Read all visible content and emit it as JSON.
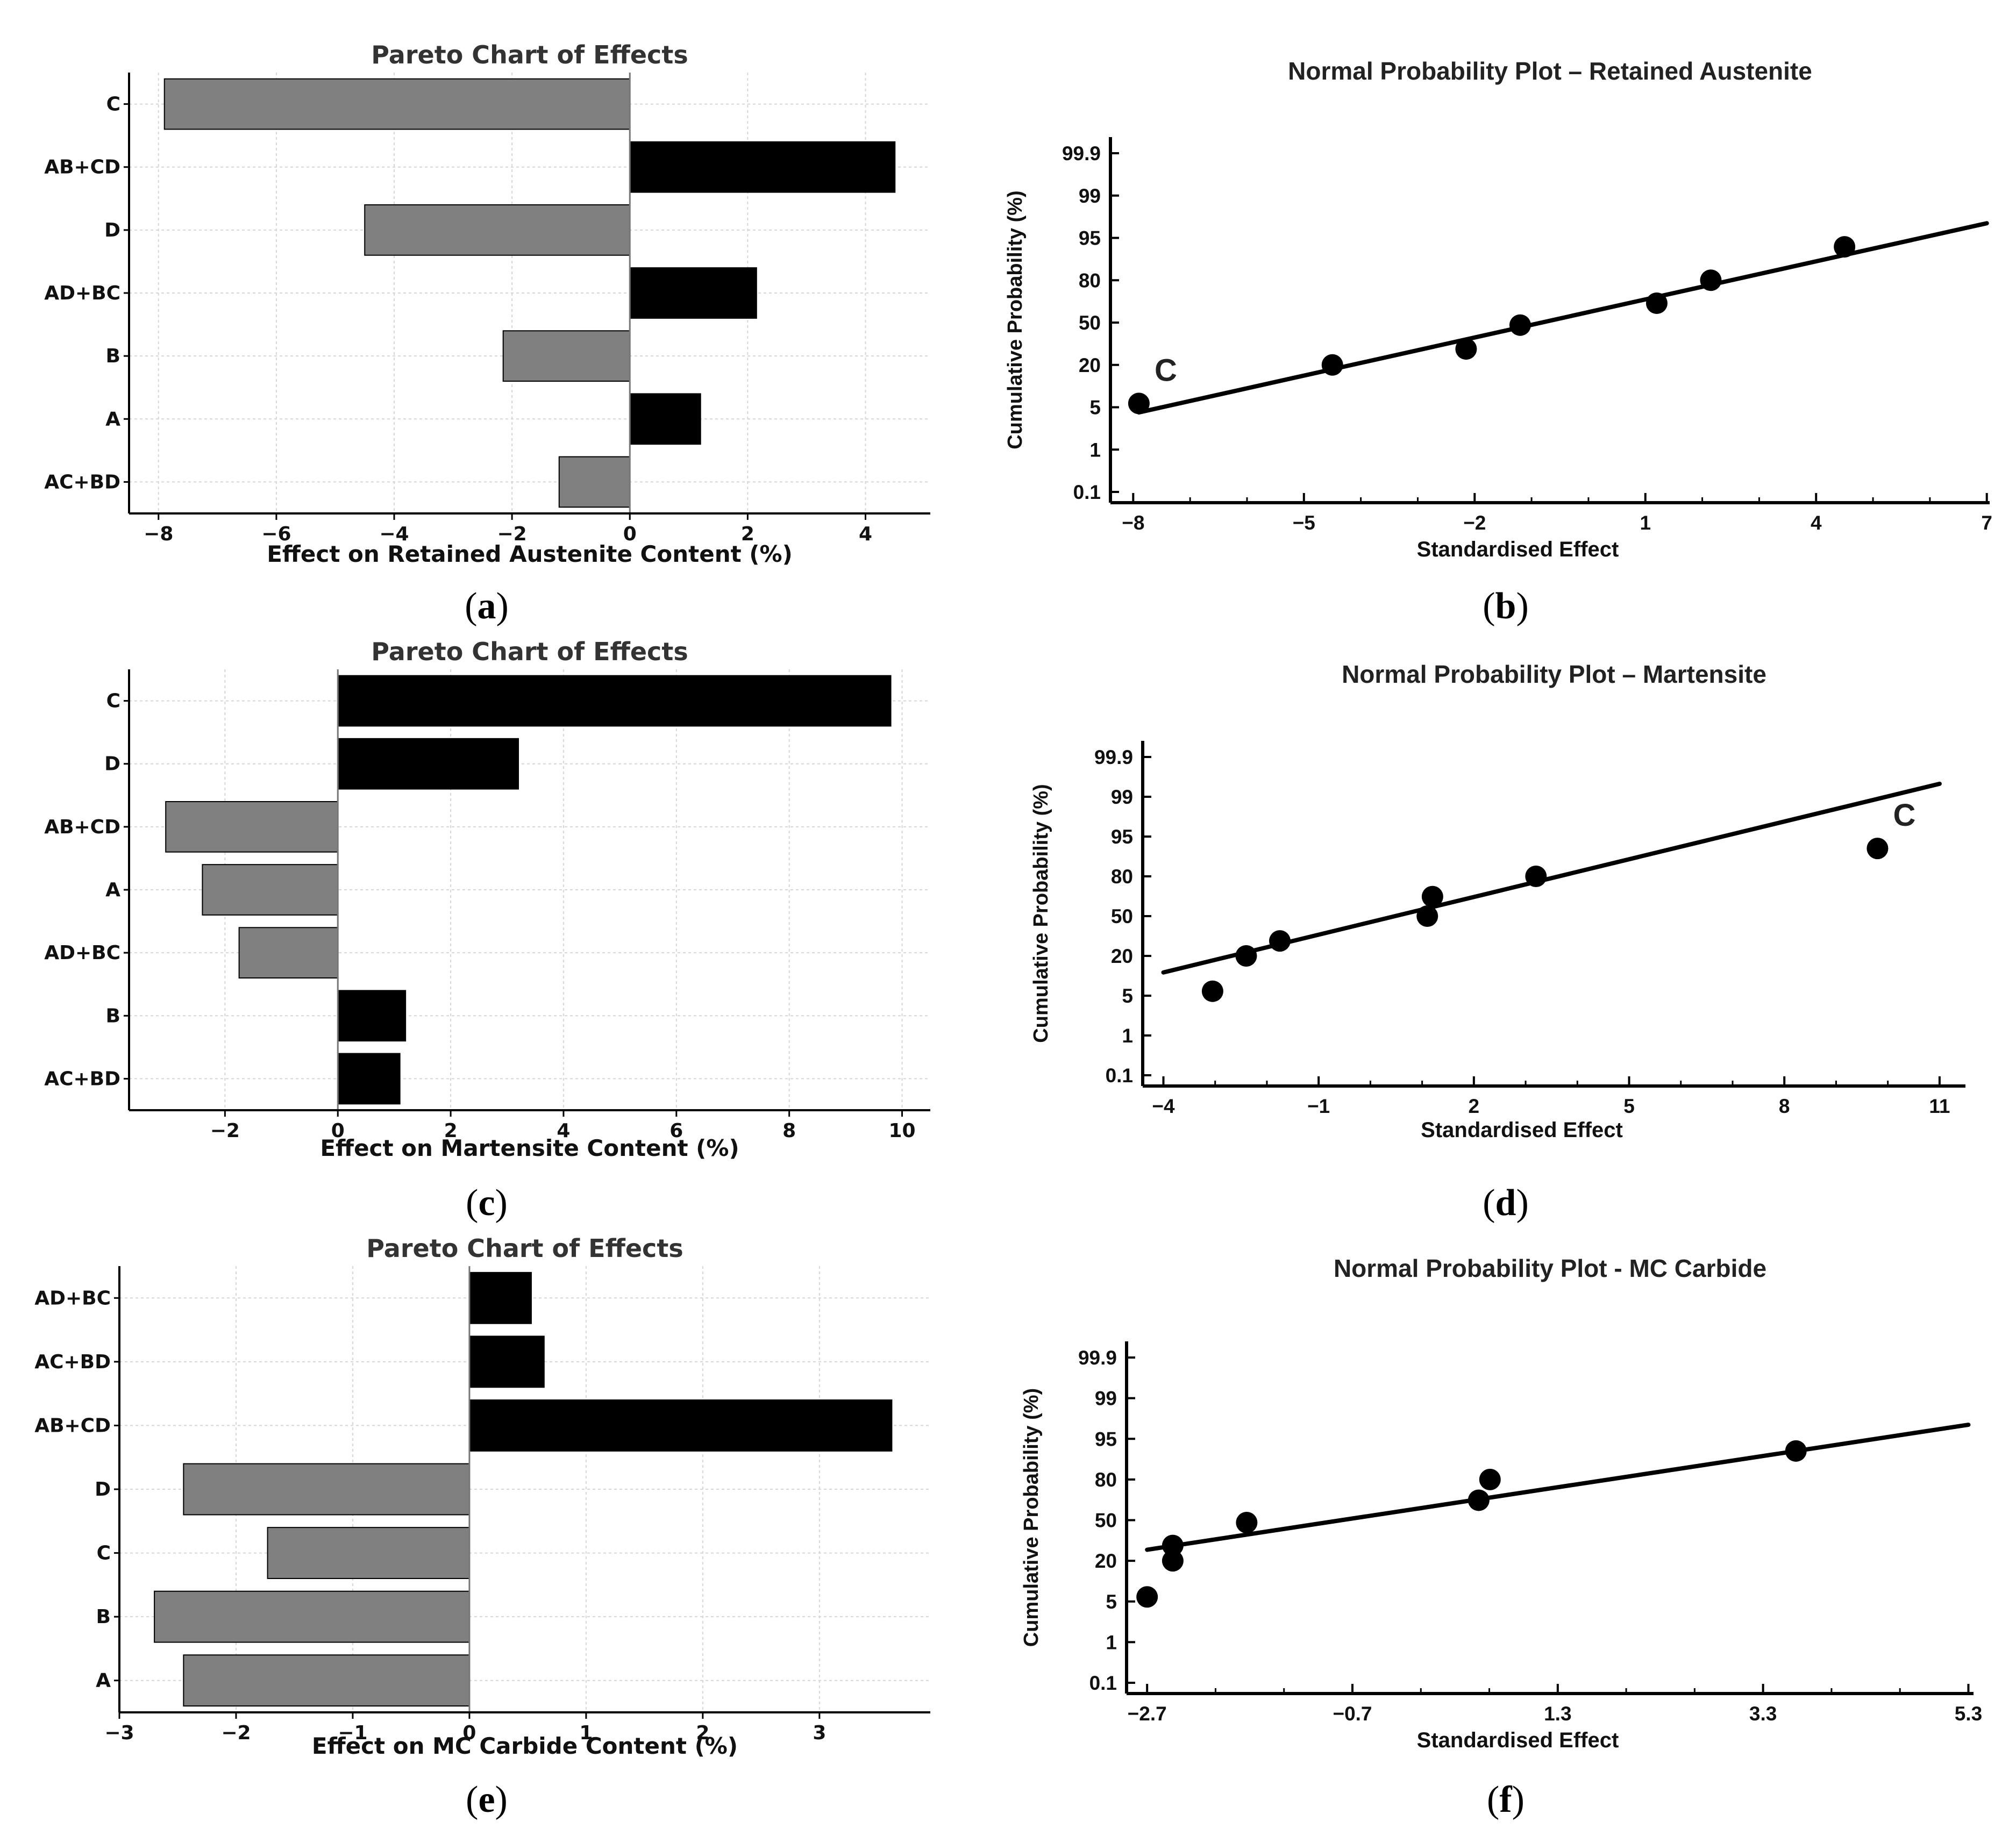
{
  "chart_data": [
    {
      "id": "a",
      "type": "bar",
      "orientation": "horizontal",
      "title": "Pareto Chart of Effects",
      "xlabel": "Effect on Retained Austenite Content (%)",
      "ylabel": "",
      "categories": [
        "C",
        "AB+CD",
        "D",
        "AD+BC",
        "B",
        "A",
        "AC+BD"
      ],
      "values": [
        -7.9,
        4.5,
        -4.5,
        2.15,
        -2.15,
        1.2,
        -1.2
      ],
      "xlim": [
        -8.5,
        5.1
      ],
      "xticks": [
        -8,
        -6,
        -4,
        -2,
        0,
        2,
        4
      ],
      "xtick_labels": [
        "−8",
        "−6",
        "−4",
        "−2",
        "0",
        "2",
        "4"
      ],
      "grid": true,
      "colors": {
        "positive": "#000000",
        "negative": "#808080"
      },
      "caption": {
        "pre": "(",
        "letter": "a",
        "post": ")"
      }
    },
    {
      "id": "b",
      "type": "scatter",
      "title": "Normal Probability Plot – Retained Austenite",
      "xlabel": "Standardised Effect",
      "ylabel": "Cumulative Probability (%)",
      "xlim": [
        -8.4,
        7.05
      ],
      "xticks": [
        -8,
        -5,
        -2,
        1,
        4,
        7
      ],
      "xtick_labels": [
        "−8",
        "−5",
        "−2",
        "1",
        "4",
        "7"
      ],
      "yticks": [
        "0.1",
        "1",
        "5",
        "20",
        "50",
        "80",
        "95",
        "99",
        "99.9"
      ],
      "points": [
        {
          "x": -7.9,
          "p": 5.8,
          "label": "C"
        },
        {
          "x": -4.5,
          "p": 20
        },
        {
          "x": -2.15,
          "p": 30
        },
        {
          "x": -1.2,
          "p": 48
        },
        {
          "x": 1.2,
          "p": 65
        },
        {
          "x": 2.15,
          "p": 80
        },
        {
          "x": 4.5,
          "p": 93
        }
      ],
      "fit_line": {
        "x": [
          -7.9,
          7.0
        ],
        "p": [
          4.2,
          97
        ]
      },
      "caption": {
        "pre": "(",
        "letter": "b",
        "post": ")"
      }
    },
    {
      "id": "c",
      "type": "bar",
      "orientation": "horizontal",
      "title": "Pareto Chart of Effects",
      "xlabel": "Effect on Martensite Content (%)",
      "ylabel": "",
      "categories": [
        "C",
        "D",
        "AB+CD",
        "A",
        "AD+BC",
        "B",
        "AC+BD"
      ],
      "values": [
        9.8,
        3.2,
        -3.05,
        -2.4,
        -1.75,
        1.2,
        1.1
      ],
      "xlim": [
        -3.7,
        10.5
      ],
      "xticks": [
        -2,
        0,
        2,
        4,
        6,
        8,
        10
      ],
      "xtick_labels": [
        "−2",
        "0",
        "2",
        "4",
        "6",
        "8",
        "10"
      ],
      "grid": true,
      "colors": {
        "positive": "#000000",
        "negative": "#808080"
      },
      "caption": {
        "pre": "(",
        "letter": "c",
        "post": ")"
      }
    },
    {
      "id": "d",
      "type": "scatter",
      "title": "Normal Probability Plot – Martensite",
      "xlabel": "Standardised Effect",
      "ylabel": "Cumulative Probability (%)",
      "xlim": [
        -4.4,
        11.5
      ],
      "xticks": [
        -4,
        -1,
        2,
        5,
        8,
        11
      ],
      "xtick_labels": [
        "−4",
        "−1",
        "2",
        "5",
        "8",
        "11"
      ],
      "yticks": [
        "0.1",
        "1",
        "5",
        "20",
        "50",
        "80",
        "95",
        "99",
        "99.9"
      ],
      "points": [
        {
          "x": -3.05,
          "p": 6
        },
        {
          "x": -2.4,
          "p": 20
        },
        {
          "x": -1.75,
          "p": 30
        },
        {
          "x": 1.1,
          "p": 50
        },
        {
          "x": 1.2,
          "p": 66
        },
        {
          "x": 3.2,
          "p": 80
        },
        {
          "x": 9.8,
          "p": 92,
          "label": "C"
        }
      ],
      "fit_line": {
        "x": [
          -4.0,
          11.0
        ],
        "p": [
          12,
          99.5
        ]
      },
      "caption": {
        "pre": "(",
        "letter": "d",
        "post": ")"
      }
    },
    {
      "id": "e",
      "type": "bar",
      "orientation": "horizontal",
      "title": "Pareto Chart of Effects",
      "xlabel": "Effect on MC Carbide Content (%)",
      "ylabel": "",
      "categories": [
        "AD+BC",
        "AC+BD",
        "AB+CD",
        "D",
        "C",
        "B",
        "A"
      ],
      "values": [
        0.53,
        0.64,
        3.62,
        -2.45,
        -1.73,
        -2.7,
        -2.45
      ],
      "xlim": [
        -3.0,
        3.95
      ],
      "xticks": [
        -3,
        -2,
        -1,
        0,
        1,
        2,
        3
      ],
      "xtick_labels": [
        "−3",
        "−2",
        "−1",
        "0",
        "1",
        "2",
        "3"
      ],
      "grid": true,
      "colors": {
        "positive": "#000000",
        "negative": "#808080"
      },
      "caption": {
        "pre": "(",
        "letter": "e",
        "post": ")"
      }
    },
    {
      "id": "f",
      "type": "scatter",
      "title": "Normal Probability Plot - MC Carbide",
      "xlabel": "Standardised Effect",
      "ylabel": "Cumulative Probability (%)",
      "xlim": [
        -2.9,
        5.35
      ],
      "xticks": [
        -2.7,
        -0.7,
        1.3,
        3.3,
        5.3
      ],
      "xtick_labels": [
        "−2.7",
        "−0.7",
        "1.3",
        "3.3",
        "5.3"
      ],
      "yticks": [
        "0.1",
        "1",
        "5",
        "20",
        "50",
        "80",
        "95",
        "99",
        "99.9"
      ],
      "points": [
        {
          "x": -2.7,
          "p": 6
        },
        {
          "x": -2.45,
          "p": 20
        },
        {
          "x": -2.45,
          "p": 30
        },
        {
          "x": -1.73,
          "p": 48
        },
        {
          "x": 0.53,
          "p": 66
        },
        {
          "x": 0.64,
          "p": 80
        },
        {
          "x": 3.62,
          "p": 92
        }
      ],
      "fit_line": {
        "x": [
          -2.7,
          5.3
        ],
        "p": [
          27,
          97
        ]
      },
      "caption": {
        "pre": "(",
        "letter": "f",
        "post": ")"
      }
    }
  ]
}
